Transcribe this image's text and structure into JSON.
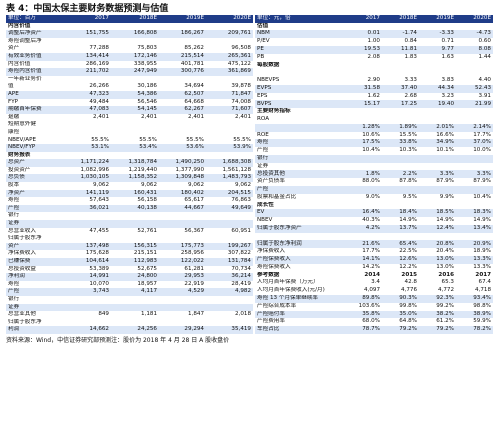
{
  "title": "表 4：中国太保主要财务数据预测与估值",
  "left": {
    "headers": [
      "单位：百万",
      "2017",
      "2018E",
      "2019E",
      "2020E"
    ],
    "rows": [
      {
        "label": "内含价值",
        "values": [
          "",
          "",
          "",
          ""
        ],
        "type": "sec"
      },
      {
        "label": "调整后净资产",
        "values": [
          "151,755",
          "166,808",
          "186,267",
          "209,761"
        ],
        "type": "stripe"
      },
      {
        "label": "寿险调整后净",
        "values": [
          "",
          "",
          "",
          ""
        ],
        "type": ""
      },
      {
        "label": "资产",
        "values": [
          "77,288",
          "75,803",
          "85,262",
          "96,508"
        ],
        "type": ""
      },
      {
        "label": "有效业务价值",
        "values": [
          "134,414",
          "172,146",
          "215,514",
          "265,361"
        ],
        "type": "stripe"
      },
      {
        "label": "内含价值",
        "values": [
          "286,169",
          "338,955",
          "401,781",
          "475,122"
        ],
        "type": ""
      },
      {
        "label": "寿险内含价值",
        "values": [
          "211,702",
          "247,949",
          "300,776",
          "361,869"
        ],
        "type": "stripe"
      },
      {
        "label": "一年新业务价",
        "values": [
          "",
          "",
          "",
          ""
        ],
        "type": ""
      },
      {
        "label": "值",
        "values": [
          "26,266",
          "30,186",
          "34,694",
          "39,878"
        ],
        "type": ""
      },
      {
        "label": "APE",
        "values": [
          "47,323",
          "54,386",
          "62,507",
          "71,847"
        ],
        "type": "stripe"
      },
      {
        "label": "FYP",
        "values": [
          "49,484",
          "56,546",
          "64,668",
          "74,008"
        ],
        "type": ""
      },
      {
        "label": "期缴首年保费",
        "values": [
          "47,083",
          "54,145",
          "62,267",
          "71,607"
        ],
        "type": "stripe"
      },
      {
        "label": "趸缴",
        "values": [
          "2,401",
          "2,401",
          "2,401",
          "2,401"
        ],
        "type": ""
      },
      {
        "label": "短期意外健",
        "values": [
          "",
          "",
          "",
          ""
        ],
        "type": ""
      },
      {
        "label": "康险",
        "values": [
          "",
          "",
          "",
          ""
        ],
        "type": ""
      },
      {
        "label": "NBEV/APE",
        "values": [
          "55.5%",
          "55.5%",
          "55.5%",
          "55.5%"
        ],
        "type": ""
      },
      {
        "label": "NBEV/FYP",
        "values": [
          "53.1%",
          "53.4%",
          "53.6%",
          "53.9%"
        ],
        "type": "stripe"
      },
      {
        "label": "财务报表",
        "values": [
          "",
          "",
          "",
          ""
        ],
        "type": "sec"
      },
      {
        "label": "总资产",
        "values": [
          "1,171,224",
          "1,318,784",
          "1,490,250",
          "1,688,308"
        ],
        "type": "stripe"
      },
      {
        "label": "投资资产",
        "values": [
          "1,082,996",
          "1,219,440",
          "1,377,990",
          "1,561,128"
        ],
        "type": ""
      },
      {
        "label": "总负债",
        "values": [
          "1,030,105",
          "1,158,352",
          "1,309,848",
          "1,483,793"
        ],
        "type": "stripe"
      },
      {
        "label": "股本",
        "values": [
          "9,062",
          "9,062",
          "9,062",
          "9,062"
        ],
        "type": ""
      },
      {
        "label": "净资产",
        "values": [
          "141,119",
          "160,431",
          "180,402",
          "204,515"
        ],
        "type": "stripe"
      },
      {
        "label": "寿险",
        "values": [
          "57,643",
          "56,158",
          "65,617",
          "76,863"
        ],
        "type": ""
      },
      {
        "label": "产险",
        "values": [
          "36,021",
          "40,138",
          "44,667",
          "49,649"
        ],
        "type": "stripe"
      },
      {
        "label": "银行",
        "values": [
          "",
          "",
          "",
          ""
        ],
        "type": ""
      },
      {
        "label": "证券",
        "values": [
          "",
          "",
          "",
          ""
        ],
        "type": "stripe"
      },
      {
        "label": "总营业收入",
        "values": [
          "47,455",
          "52,761",
          "56,367",
          "60,951"
        ],
        "type": ""
      },
      {
        "label": "归属于股东净",
        "values": [
          "",
          "",
          "",
          ""
        ],
        "type": ""
      },
      {
        "label": "资产",
        "values": [
          "137,498",
          "156,315",
          "175,773",
          "199,267"
        ],
        "type": "stripe"
      },
      {
        "label": "净保费收入",
        "values": [
          "175,628",
          "215,151",
          "258,956",
          "307,822"
        ],
        "type": ""
      },
      {
        "label": "已赚保费",
        "values": [
          "104,614",
          "112,983",
          "122,022",
          "131,784"
        ],
        "type": "stripe"
      },
      {
        "label": "总投资收益",
        "values": [
          "53,389",
          "52,675",
          "61,281",
          "70,734"
        ],
        "type": ""
      },
      {
        "label": "净利润",
        "values": [
          "14,991",
          "24,800",
          "29,953",
          "36,214"
        ],
        "type": "stripe"
      },
      {
        "label": "寿险",
        "values": [
          "10,070",
          "18,957",
          "22,919",
          "28,419"
        ],
        "type": ""
      },
      {
        "label": "产险",
        "values": [
          "3,743",
          "4,117",
          "4,529",
          "4,982"
        ],
        "type": "stripe"
      },
      {
        "label": "银行",
        "values": [
          "",
          "",
          "",
          ""
        ],
        "type": ""
      },
      {
        "label": "证券",
        "values": [
          "",
          "",
          "",
          ""
        ],
        "type": "stripe"
      },
      {
        "label": "总营业其他",
        "values": [
          "849",
          "1,181",
          "1,847",
          "2,018"
        ],
        "type": ""
      },
      {
        "label": "归属于股东净",
        "values": [
          "",
          "",
          "",
          ""
        ],
        "type": ""
      },
      {
        "label": "利润",
        "values": [
          "14,662",
          "24,256",
          "29,294",
          "35,419"
        ],
        "type": "stripe"
      }
    ]
  },
  "right": {
    "headers": [
      "单位：元，倍",
      "2017",
      "2018E",
      "2019E",
      "2020E"
    ],
    "rows": [
      {
        "label": "估值",
        "values": [
          "",
          "",
          "",
          ""
        ],
        "type": "sec"
      },
      {
        "label": "NBM",
        "values": [
          "0.01",
          "-1.74",
          "-3.33",
          "-4.73"
        ],
        "type": "stripe"
      },
      {
        "label": "P/EV",
        "values": [
          "1.00",
          "0.84",
          "0.71",
          "0.60"
        ],
        "type": ""
      },
      {
        "label": "PE",
        "values": [
          "19.53",
          "11.81",
          "9.77",
          "8.08"
        ],
        "type": "stripe"
      },
      {
        "label": "PB",
        "values": [
          "2.08",
          "1.83",
          "1.63",
          "1.44"
        ],
        "type": ""
      },
      {
        "label": "每股数据",
        "values": [
          "",
          "",
          "",
          ""
        ],
        "type": "sec"
      },
      {
        "label": "",
        "values": [
          "",
          "",
          "",
          ""
        ],
        "type": ""
      },
      {
        "label": "NBEVPS",
        "values": [
          "2.90",
          "3.33",
          "3.83",
          "4.40"
        ],
        "type": ""
      },
      {
        "label": "EVPS",
        "values": [
          "31.58",
          "37.40",
          "44.34",
          "52.43"
        ],
        "type": "stripe"
      },
      {
        "label": "EPS",
        "values": [
          "1.62",
          "2.68",
          "3.23",
          "3.91"
        ],
        "type": ""
      },
      {
        "label": "BVPS",
        "values": [
          "15.17",
          "17.25",
          "19.40",
          "21.99"
        ],
        "type": "stripe"
      },
      {
        "label": "主要财务指标",
        "values": [
          "",
          "",
          "",
          ""
        ],
        "type": "sec"
      },
      {
        "label": "ROA",
        "values": [
          "",
          "",
          "",
          ""
        ],
        "type": ""
      },
      {
        "label": "",
        "values": [
          "1.28%",
          "1.89%",
          "2.01%",
          "2.14%"
        ],
        "type": "stripe"
      },
      {
        "label": "ROE",
        "values": [
          "10.6%",
          "15.5%",
          "16.6%",
          "17.7%"
        ],
        "type": ""
      },
      {
        "label": "寿险",
        "values": [
          "17.5%",
          "33.8%",
          "34.9%",
          "37.0%"
        ],
        "type": "stripe"
      },
      {
        "label": "产险",
        "values": [
          "10.4%",
          "10.3%",
          "10.1%",
          "10.0%"
        ],
        "type": ""
      },
      {
        "label": "银行",
        "values": [
          "",
          "",
          "",
          ""
        ],
        "type": "stripe"
      },
      {
        "label": "证券",
        "values": [
          "",
          "",
          "",
          ""
        ],
        "type": ""
      },
      {
        "label": "总投资其他",
        "values": [
          "1.8%",
          "2.2%",
          "3.3%",
          "3.3%"
        ],
        "type": "stripe"
      },
      {
        "label": "资产负债率",
        "values": [
          "88.0%",
          "87.8%",
          "87.9%",
          "87.9%"
        ],
        "type": ""
      },
      {
        "label": "产险",
        "values": [
          "",
          "",
          "",
          ""
        ],
        "type": "stripe"
      },
      {
        "label": "股票和基金占比",
        "values": [
          "9.0%",
          "9.5%",
          "9.9%",
          "10.4%"
        ],
        "type": ""
      },
      {
        "label": "成长性",
        "values": [
          "",
          "",
          "",
          ""
        ],
        "type": "sec"
      },
      {
        "label": "EV",
        "values": [
          "16.4%",
          "18.4%",
          "18.5%",
          "18.3%"
        ],
        "type": "stripe"
      },
      {
        "label": "NBEV",
        "values": [
          "40.3%",
          "14.9%",
          "14.9%",
          "14.9%"
        ],
        "type": ""
      },
      {
        "label": "归属于股东净资产",
        "values": [
          "4.2%",
          "13.7%",
          "12.4%",
          "13.4%"
        ],
        "type": "stripe"
      },
      {
        "label": "",
        "values": [
          "",
          "",
          "",
          ""
        ],
        "type": ""
      },
      {
        "label": "归属于股东净利润",
        "values": [
          "21.6%",
          "65.4%",
          "20.8%",
          "20.9%"
        ],
        "type": "stripe"
      },
      {
        "label": "净保费收入",
        "values": [
          "17.7%",
          "22.5%",
          "20.4%",
          "18.9%"
        ],
        "type": ""
      },
      {
        "label": "产险保费收入",
        "values": [
          "14.1%",
          "12.6%",
          "13.0%",
          "13.3%"
        ],
        "type": "stripe"
      },
      {
        "label": "寿险保费收入",
        "values": [
          "14.2%",
          "12.2%",
          "13.0%",
          "13.3%"
        ],
        "type": ""
      },
      {
        "label": "参考数据",
        "values": [
          "2014",
          "2015",
          "2016",
          "2017"
        ],
        "type": "hdr"
      },
      {
        "label": "人均月首年保费（万元）",
        "values": [
          "3.4",
          "42.8",
          "65.3",
          "67.4"
        ],
        "type": ""
      },
      {
        "label": "人均月首年保费收入(元/月)",
        "values": [
          "4,097",
          "4,776",
          "4,772",
          "4,718"
        ],
        "type": ""
      },
      {
        "label": "寿险 13 个月保单继续率",
        "values": [
          "89.8%",
          "90.3%",
          "92.3%",
          "93.4%"
        ],
        "type": "stripe"
      },
      {
        "label": "产险综合成本率",
        "values": [
          "103.6%",
          "99.8%",
          "99.2%",
          "98.8%"
        ],
        "type": ""
      },
      {
        "label": "产险赔付率",
        "values": [
          "35.8%",
          "35.0%",
          "38.2%",
          "38.9%"
        ],
        "type": "stripe"
      },
      {
        "label": "产险费用率",
        "values": [
          "68.0%",
          "64.8%",
          "61.2%",
          "59.9%"
        ],
        "type": ""
      },
      {
        "label": "车险占比",
        "values": [
          "78.7%",
          "79.2%",
          "79.2%",
          "78.2%"
        ],
        "type": "stripe"
      }
    ]
  },
  "footer": "资料来源：Wind，中信证券研究部预测注：股价为 2018 年 4 月 28 日 A 股收盘价"
}
